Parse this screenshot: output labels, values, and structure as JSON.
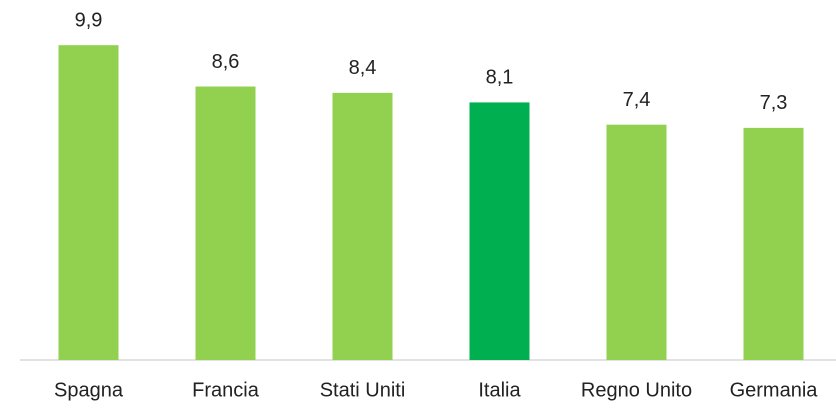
{
  "chart_data": {
    "type": "bar",
    "categories": [
      "Spagna",
      "Francia",
      "Stati Uniti",
      "Italia",
      "Regno Unito",
      "Germania"
    ],
    "values": [
      9.9,
      8.6,
      8.4,
      8.1,
      7.4,
      7.3
    ],
    "value_labels": [
      "9,9",
      "8,6",
      "8,4",
      "8,1",
      "7,4",
      "7,3"
    ],
    "colors": [
      "#92d050",
      "#92d050",
      "#92d050",
      "#00b050",
      "#92d050",
      "#92d050"
    ],
    "ylim": [
      0,
      10
    ]
  }
}
